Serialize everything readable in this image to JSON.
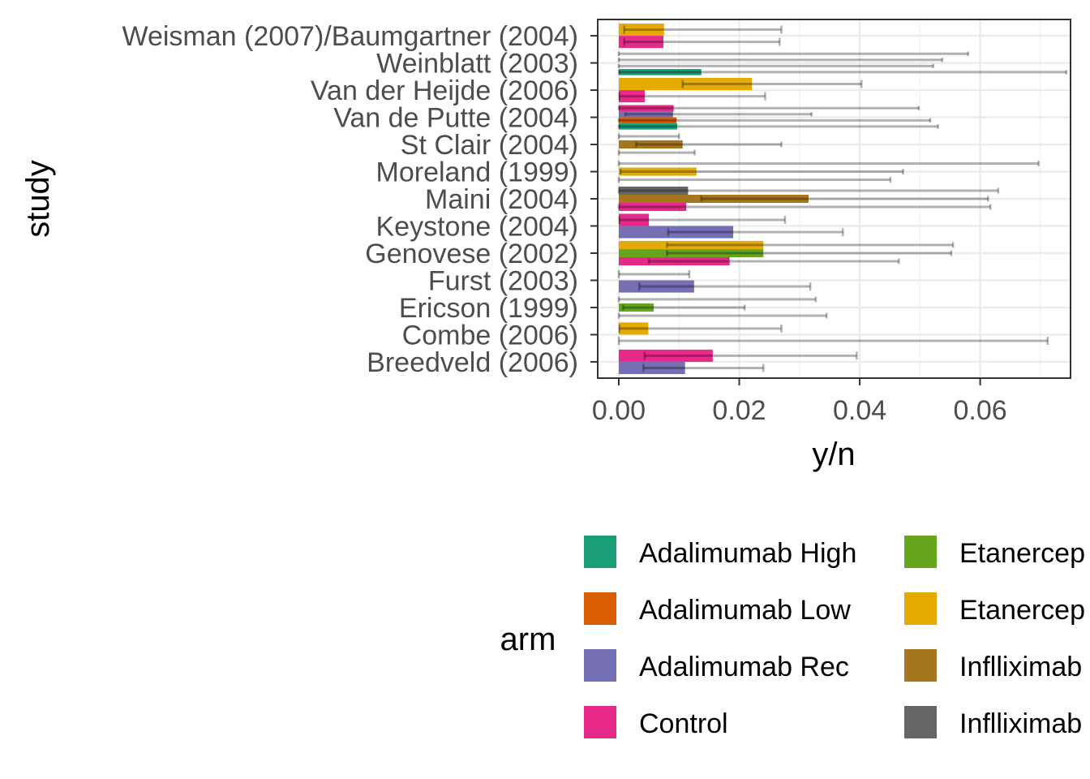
{
  "chart_data": {
    "type": "bar",
    "orientation": "horizontal",
    "xlabel": "y/n",
    "ylabel": "study",
    "xlim": [
      -0.0035,
      0.075
    ],
    "x_ticks": [
      0.0,
      0.02,
      0.04,
      0.06
    ],
    "x_tick_labels": [
      "0.00",
      "0.02",
      "0.04",
      "0.06"
    ],
    "grid": true,
    "legend_position": "bottom",
    "legend_title": "arm",
    "categories": [
      "Weisman (2007)/Baumgartner (2004)",
      "Weinblatt (2003)",
      "Van der Heijde (2006)",
      "Van de Putte (2004)",
      "St Clair (2004)",
      "Moreland (1999)",
      "Maini (2004)",
      "Keystone (2004)",
      "Genovese (2002)",
      "Furst (2003)",
      "Ericson (1999)",
      "Combe (2006)",
      "Breedveld (2006)"
    ],
    "arms": [
      {
        "name": "Adalimumab High",
        "color": "#1B9E77"
      },
      {
        "name": "Adalimumab Low",
        "color": "#D95F02"
      },
      {
        "name": "Adalimumab Rec",
        "color": "#7570B3"
      },
      {
        "name": "Control",
        "color": "#E7298A"
      },
      {
        "name": "Etanercep",
        "color": "#66A61E"
      },
      {
        "name": "Etanercep",
        "color": "#E6AB02"
      },
      {
        "name": "Inflliximab",
        "color": "#A6761D"
      },
      {
        "name": "Inflliximab",
        "color": "#666666"
      }
    ],
    "bars": [
      {
        "study": 0,
        "arm": 5,
        "value": 0.0075,
        "ci": [
          0.0009,
          0.027
        ],
        "slot": 0,
        "n": 2
      },
      {
        "study": 0,
        "arm": 3,
        "value": 0.0074,
        "ci": [
          0.0009,
          0.0267
        ],
        "slot": 1,
        "n": 2
      },
      {
        "study": 1,
        "arm": 2,
        "value": 0.0,
        "ci": [
          0.0,
          0.058
        ],
        "slot": 0,
        "n": 4
      },
      {
        "study": 1,
        "arm": 1,
        "value": 0.0,
        "ci": [
          0.0,
          0.0537
        ],
        "slot": 1,
        "n": 4
      },
      {
        "study": 1,
        "arm": 3,
        "value": 0.0,
        "ci": [
          0.0,
          0.0522
        ],
        "slot": 2,
        "n": 4
      },
      {
        "study": 1,
        "arm": 0,
        "value": 0.0137,
        "ci": [
          0.0,
          0.0743
        ],
        "slot": 3,
        "n": 4
      },
      {
        "study": 2,
        "arm": 5,
        "value": 0.0221,
        "ci": [
          0.0106,
          0.0403
        ],
        "slot": 0,
        "n": 2
      },
      {
        "study": 2,
        "arm": 3,
        "value": 0.0043,
        "ci": [
          0.0001,
          0.0243
        ],
        "slot": 1,
        "n": 2
      },
      {
        "study": 3,
        "arm": 3,
        "value": 0.0091,
        "ci": [
          0.0,
          0.0498
        ],
        "slot": 0,
        "n": 4
      },
      {
        "study": 3,
        "arm": 2,
        "value": 0.009,
        "ci": [
          0.0011,
          0.032
        ],
        "slot": 1,
        "n": 4
      },
      {
        "study": 3,
        "arm": 1,
        "value": 0.0096,
        "ci": [
          0.0,
          0.0517
        ],
        "slot": 2,
        "n": 4
      },
      {
        "study": 3,
        "arm": 0,
        "value": 0.0097,
        "ci": [
          0.0,
          0.053
        ],
        "slot": 3,
        "n": 4
      },
      {
        "study": 4,
        "arm": 3,
        "value": 0.0,
        "ci": [
          0.0,
          0.01
        ],
        "slot": 0,
        "n": 3
      },
      {
        "study": 4,
        "arm": 6,
        "value": 0.0106,
        "ci": [
          0.0029,
          0.027
        ],
        "slot": 1,
        "n": 3
      },
      {
        "study": 4,
        "arm": 7,
        "value": 0.0,
        "ci": [
          0.0,
          0.0126
        ],
        "slot": 2,
        "n": 3
      },
      {
        "study": 5,
        "arm": 3,
        "value": 0.0,
        "ci": [
          0.0,
          0.0697
        ],
        "slot": 0,
        "n": 3
      },
      {
        "study": 5,
        "arm": 5,
        "value": 0.0129,
        "ci": [
          0.0003,
          0.0472
        ],
        "slot": 1,
        "n": 3
      },
      {
        "study": 5,
        "arm": 4,
        "value": 0.0,
        "ci": [
          0.0,
          0.0451
        ],
        "slot": 2,
        "n": 3
      },
      {
        "study": 6,
        "arm": 7,
        "value": 0.0115,
        "ci": [
          0.0,
          0.063
        ],
        "slot": 0,
        "n": 3
      },
      {
        "study": 6,
        "arm": 6,
        "value": 0.0315,
        "ci": [
          0.0137,
          0.0613
        ],
        "slot": 1,
        "n": 3
      },
      {
        "study": 6,
        "arm": 3,
        "value": 0.0112,
        "ci": [
          0.0,
          0.0617
        ],
        "slot": 2,
        "n": 3
      },
      {
        "study": 7,
        "arm": 3,
        "value": 0.005,
        "ci": [
          0.0001,
          0.0276
        ],
        "slot": 0,
        "n": 2
      },
      {
        "study": 7,
        "arm": 2,
        "value": 0.019,
        "ci": [
          0.0082,
          0.0372
        ],
        "slot": 1,
        "n": 2
      },
      {
        "study": 8,
        "arm": 5,
        "value": 0.024,
        "ci": [
          0.008,
          0.0555
        ],
        "slot": 0,
        "n": 3
      },
      {
        "study": 8,
        "arm": 4,
        "value": 0.024,
        "ci": [
          0.008,
          0.0552
        ],
        "slot": 1,
        "n": 3
      },
      {
        "study": 8,
        "arm": 3,
        "value": 0.0184,
        "ci": [
          0.005,
          0.0465
        ],
        "slot": 2,
        "n": 3
      },
      {
        "study": 9,
        "arm": 3,
        "value": 0.0,
        "ci": [
          0.0,
          0.0117
        ],
        "slot": 0,
        "n": 2
      },
      {
        "study": 9,
        "arm": 2,
        "value": 0.0125,
        "ci": [
          0.0034,
          0.0318
        ],
        "slot": 1,
        "n": 2
      },
      {
        "study": 10,
        "arm": 3,
        "value": 0.0,
        "ci": [
          0.0,
          0.0327
        ],
        "slot": 0,
        "n": 3
      },
      {
        "study": 10,
        "arm": 4,
        "value": 0.0058,
        "ci": [
          0.0007,
          0.0209
        ],
        "slot": 1,
        "n": 3
      },
      {
        "study": 10,
        "arm": 5,
        "value": 0.0,
        "ci": [
          0.0,
          0.0345
        ],
        "slot": 2,
        "n": 3
      },
      {
        "study": 11,
        "arm": 5,
        "value": 0.0049,
        "ci": [
          0.0001,
          0.027
        ],
        "slot": 0,
        "n": 2
      },
      {
        "study": 11,
        "arm": 3,
        "value": 0.0,
        "ci": [
          0.0,
          0.0712
        ],
        "slot": 1,
        "n": 2
      },
      {
        "study": 12,
        "arm": 3,
        "value": 0.0156,
        "ci": [
          0.0043,
          0.0395
        ],
        "slot": 0,
        "n": 2
      },
      {
        "study": 12,
        "arm": 2,
        "value": 0.011,
        "ci": [
          0.0041,
          0.024
        ],
        "slot": 1,
        "n": 2
      }
    ]
  }
}
